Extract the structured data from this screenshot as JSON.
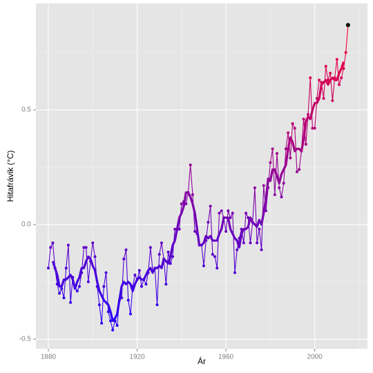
{
  "chart_data": {
    "type": "line",
    "x_label": "Ár",
    "y_label": "Hitafrávik (°C)",
    "x": [
      1880,
      1881,
      1882,
      1883,
      1884,
      1885,
      1886,
      1887,
      1888,
      1889,
      1890,
      1891,
      1892,
      1893,
      1894,
      1895,
      1896,
      1897,
      1898,
      1899,
      1900,
      1901,
      1902,
      1903,
      1904,
      1905,
      1906,
      1907,
      1908,
      1909,
      1910,
      1911,
      1912,
      1913,
      1914,
      1915,
      1916,
      1917,
      1918,
      1919,
      1920,
      1921,
      1922,
      1923,
      1924,
      1925,
      1926,
      1927,
      1928,
      1929,
      1930,
      1931,
      1932,
      1933,
      1934,
      1935,
      1936,
      1937,
      1938,
      1939,
      1940,
      1941,
      1942,
      1943,
      1944,
      1945,
      1946,
      1947,
      1948,
      1949,
      1950,
      1951,
      1952,
      1953,
      1954,
      1955,
      1956,
      1957,
      1958,
      1959,
      1960,
      1961,
      1962,
      1963,
      1964,
      1965,
      1966,
      1967,
      1968,
      1969,
      1970,
      1971,
      1972,
      1973,
      1974,
      1975,
      1976,
      1977,
      1978,
      1979,
      1980,
      1981,
      1982,
      1983,
      1984,
      1985,
      1986,
      1987,
      1988,
      1989,
      1990,
      1991,
      1992,
      1993,
      1994,
      1995,
      1996,
      1997,
      1998,
      1999,
      2000,
      2001,
      2002,
      2003,
      2004,
      2005,
      2006,
      2007,
      2008,
      2009,
      2010,
      2011,
      2012,
      2013,
      2014,
      2015
    ],
    "series": [
      {
        "style": "points",
        "values": [
          -0.19,
          -0.1,
          -0.08,
          -0.19,
          -0.26,
          -0.3,
          -0.28,
          -0.32,
          -0.19,
          -0.09,
          -0.34,
          -0.23,
          -0.27,
          -0.29,
          -0.27,
          -0.21,
          -0.1,
          -0.1,
          -0.25,
          -0.16,
          -0.08,
          -0.14,
          -0.27,
          -0.35,
          -0.43,
          -0.27,
          -0.21,
          -0.38,
          -0.42,
          -0.46,
          -0.42,
          -0.44,
          -0.33,
          -0.32,
          -0.15,
          -0.11,
          -0.33,
          -0.39,
          -0.27,
          -0.22,
          -0.24,
          -0.2,
          -0.27,
          -0.24,
          -0.26,
          -0.21,
          -0.1,
          -0.2,
          -0.19,
          -0.35,
          -0.13,
          -0.08,
          -0.15,
          -0.26,
          -0.12,
          -0.17,
          -0.14,
          -0.02,
          -0.02,
          -0.02,
          0.09,
          0.1,
          0.09,
          0.14,
          0.26,
          0.13,
          -0.03,
          -0.04,
          -0.09,
          -0.09,
          -0.18,
          -0.07,
          0.01,
          0.08,
          -0.13,
          -0.14,
          -0.19,
          0.05,
          0.06,
          0.03,
          -0.03,
          0.06,
          0.03,
          0.05,
          -0.21,
          -0.11,
          -0.06,
          -0.02,
          -0.08,
          0.05,
          0.03,
          -0.08,
          0.01,
          0.16,
          -0.08,
          -0.02,
          -0.11,
          0.17,
          0.06,
          0.16,
          0.27,
          0.33,
          0.13,
          0.31,
          0.16,
          0.12,
          0.18,
          0.33,
          0.4,
          0.29,
          0.44,
          0.42,
          0.23,
          0.24,
          0.32,
          0.46,
          0.35,
          0.48,
          0.64,
          0.42,
          0.42,
          0.55,
          0.63,
          0.62,
          0.55,
          0.69,
          0.63,
          0.66,
          0.54,
          0.64,
          0.72,
          0.61,
          0.64,
          0.68,
          0.75,
          0.87
        ]
      },
      {
        "style": "smooth",
        "values": [
          null,
          null,
          -0.16,
          -0.19,
          -0.22,
          -0.27,
          -0.27,
          -0.24,
          -0.24,
          -0.23,
          -0.22,
          -0.24,
          -0.28,
          -0.25,
          -0.23,
          -0.19,
          -0.19,
          -0.16,
          -0.14,
          -0.15,
          -0.18,
          -0.2,
          -0.25,
          -0.29,
          -0.31,
          -0.33,
          -0.34,
          -0.35,
          -0.38,
          -0.42,
          -0.41,
          -0.39,
          -0.33,
          -0.27,
          -0.25,
          -0.26,
          -0.25,
          -0.26,
          -0.29,
          -0.26,
          -0.24,
          -0.23,
          -0.24,
          -0.24,
          -0.22,
          -0.2,
          -0.19,
          -0.21,
          -0.19,
          -0.19,
          -0.18,
          -0.19,
          -0.15,
          -0.16,
          -0.17,
          -0.14,
          -0.09,
          -0.07,
          -0.02,
          0.03,
          0.05,
          0.08,
          0.14,
          0.14,
          0.12,
          0.09,
          0.05,
          -0.02,
          -0.09,
          -0.09,
          -0.08,
          -0.05,
          -0.06,
          -0.05,
          -0.07,
          -0.07,
          -0.07,
          -0.04,
          -0.02,
          0.03,
          0.03,
          0.03,
          -0.02,
          -0.04,
          -0.06,
          -0.07,
          -0.1,
          -0.04,
          -0.02,
          -0.02,
          -0.01,
          0.03,
          0.01,
          0.0,
          -0.01,
          0.02,
          0.0,
          0.05,
          0.11,
          0.2,
          0.19,
          0.24,
          0.24,
          0.21,
          0.18,
          0.22,
          0.24,
          0.26,
          0.33,
          0.38,
          0.36,
          0.32,
          0.33,
          0.33,
          0.32,
          0.37,
          0.45,
          0.47,
          0.46,
          0.5,
          0.53,
          0.53,
          0.55,
          0.61,
          0.62,
          0.63,
          0.61,
          0.63,
          0.64,
          0.63,
          0.63,
          0.66,
          0.68,
          0.71,
          null,
          null
        ]
      }
    ],
    "color_low": "#2200ff",
    "color_high": "#ff0030",
    "highlight_last": true,
    "highlight_color": "#000000",
    "xlim": [
      1874.4,
      2023.75
    ],
    "xticks": [
      1880,
      1920,
      1960,
      2000
    ],
    "xminor": [
      1900,
      1940,
      1980,
      2020
    ],
    "ylim": [
      -0.542,
      0.964
    ],
    "yticks": [
      -0.5,
      {
        "value": 0,
        "label": "0.0"
      },
      0.5
    ],
    "yminor": [
      -0.25,
      0.25,
      0.75
    ],
    "grid": true
  }
}
